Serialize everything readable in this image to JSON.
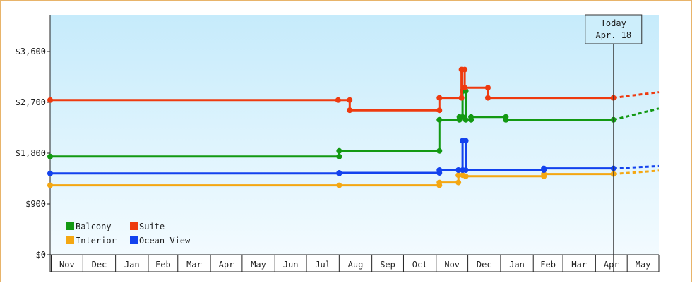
{
  "chart_data": {
    "type": "line",
    "y_tick_labels": [
      "$0",
      "$900",
      "$1,800",
      "$2,700",
      "$3,600"
    ],
    "y_ticks": [
      0,
      900,
      1800,
      2700,
      3600
    ],
    "ylim": [
      0,
      4250
    ],
    "xlim": [
      "2021-10-31",
      "2023-05-31"
    ],
    "months": [
      {
        "label": "Nov",
        "start": "2021-11-01"
      },
      {
        "label": "Dec",
        "start": "2021-12-01"
      },
      {
        "label": "Jan",
        "start": "2022-01-01"
      },
      {
        "label": "Feb",
        "start": "2022-02-01"
      },
      {
        "label": "Mar",
        "start": "2022-03-01"
      },
      {
        "label": "Apr",
        "start": "2022-04-01"
      },
      {
        "label": "May",
        "start": "2022-05-01"
      },
      {
        "label": "Jun",
        "start": "2022-06-01"
      },
      {
        "label": "Jul",
        "start": "2022-07-01"
      },
      {
        "label": "Aug",
        "start": "2022-08-01"
      },
      {
        "label": "Sep",
        "start": "2022-09-01"
      },
      {
        "label": "Oct",
        "start": "2022-10-01"
      },
      {
        "label": "Nov",
        "start": "2022-11-01"
      },
      {
        "label": "Dec",
        "start": "2022-12-01"
      },
      {
        "label": "Jan",
        "start": "2023-01-01"
      },
      {
        "label": "Feb",
        "start": "2023-02-01"
      },
      {
        "label": "Mar",
        "start": "2023-03-01"
      },
      {
        "label": "Apr",
        "start": "2023-04-01"
      },
      {
        "label": "May",
        "start": "2023-05-01"
      }
    ],
    "today": {
      "label_line1": "Today",
      "label_line2": "Apr. 18",
      "date": "2023-04-18"
    },
    "grid": false,
    "legend_position": "bottom-left",
    "series": [
      {
        "name": "Balcony",
        "color": "#139913",
        "points": [
          [
            "2021-10-31",
            1740
          ],
          [
            "2022-08-01",
            1740
          ],
          [
            "2022-08-01",
            1840
          ],
          [
            "2022-11-04",
            1840
          ],
          [
            "2022-11-04",
            2390
          ],
          [
            "2022-11-23",
            2390
          ],
          [
            "2022-11-23",
            2440
          ],
          [
            "2022-11-26",
            2440
          ],
          [
            "2022-11-26",
            2900
          ],
          [
            "2022-11-29",
            2900
          ],
          [
            "2022-11-29",
            2390
          ],
          [
            "2022-12-04",
            2390
          ],
          [
            "2022-12-04",
            2440
          ],
          [
            "2023-01-06",
            2440
          ],
          [
            "2023-01-06",
            2390
          ],
          [
            "2023-04-18",
            2390
          ]
        ],
        "projection": [
          [
            "2023-04-18",
            2390
          ],
          [
            "2023-05-31",
            2590
          ]
        ]
      },
      {
        "name": "Suite",
        "color": "#ee3a0f",
        "points": [
          [
            "2021-10-31",
            2740
          ],
          [
            "2022-07-31",
            2740
          ],
          [
            "2022-08-11",
            2740
          ],
          [
            "2022-08-11",
            2560
          ],
          [
            "2022-11-04",
            2560
          ],
          [
            "2022-11-04",
            2780
          ],
          [
            "2022-11-25",
            2780
          ],
          [
            "2022-11-25",
            3280
          ],
          [
            "2022-11-28",
            3280
          ],
          [
            "2022-11-28",
            2960
          ],
          [
            "2022-12-20",
            2960
          ],
          [
            "2022-12-20",
            2780
          ],
          [
            "2023-04-18",
            2780
          ]
        ],
        "projection": [
          [
            "2023-04-18",
            2780
          ],
          [
            "2023-05-31",
            2880
          ]
        ]
      },
      {
        "name": "Interior",
        "color": "#f4a712",
        "points": [
          [
            "2021-10-31",
            1230
          ],
          [
            "2022-08-01",
            1230
          ],
          [
            "2022-11-04",
            1230
          ],
          [
            "2022-11-04",
            1280
          ],
          [
            "2022-11-22",
            1280
          ],
          [
            "2022-11-22",
            1410
          ],
          [
            "2022-11-26",
            1410
          ],
          [
            "2022-11-29",
            1390
          ],
          [
            "2023-02-11",
            1390
          ],
          [
            "2023-02-11",
            1430
          ],
          [
            "2023-04-18",
            1430
          ]
        ],
        "projection": [
          [
            "2023-04-18",
            1430
          ],
          [
            "2023-05-31",
            1490
          ]
        ]
      },
      {
        "name": "Ocean View",
        "color": "#1342ee",
        "points": [
          [
            "2021-10-31",
            1440
          ],
          [
            "2022-08-01",
            1440
          ],
          [
            "2022-08-01",
            1450
          ],
          [
            "2022-11-04",
            1450
          ],
          [
            "2022-11-04",
            1500
          ],
          [
            "2022-11-22",
            1500
          ],
          [
            "2022-11-26",
            1500
          ],
          [
            "2022-11-26",
            2020
          ],
          [
            "2022-11-29",
            2020
          ],
          [
            "2022-11-29",
            1500
          ],
          [
            "2023-02-11",
            1500
          ],
          [
            "2023-02-11",
            1530
          ],
          [
            "2023-04-18",
            1530
          ]
        ],
        "projection": [
          [
            "2023-04-18",
            1530
          ],
          [
            "2023-05-31",
            1570
          ]
        ]
      }
    ],
    "legend": [
      {
        "name": "Balcony",
        "color": "#139913"
      },
      {
        "name": "Suite",
        "color": "#ee3a0f"
      },
      {
        "name": "Interior",
        "color": "#f4a712"
      },
      {
        "name": "Ocean View",
        "color": "#1342ee"
      }
    ]
  }
}
